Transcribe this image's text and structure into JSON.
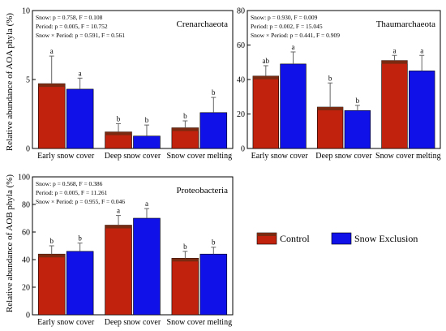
{
  "figure": {
    "ylabel_aoa": "Relative abundance of AOA phyla (%)",
    "ylabel_aob": "Relative abundance of AOB phyla (%)",
    "legend": [
      {
        "label": "Control",
        "color": "#c0220e"
      },
      {
        "label": "Snow Exclusion",
        "color": "#1010e8"
      }
    ]
  },
  "chart_data": [
    {
      "type": "bar",
      "title": "Crenarchaeota",
      "stats": [
        "Snow: p = 0.758, F = 0.108",
        "Period: p = 0.005, F = 10.752",
        "Snow × Period: p = 0.591, F = 0.561"
      ],
      "categories": [
        "Early snow cover",
        "Deep snow cover",
        "Snow cover melting"
      ],
      "ylim": [
        0,
        10
      ],
      "yticks": [
        0,
        5,
        10
      ],
      "series": [
        {
          "name": "Control",
          "values": [
            4.7,
            1.2,
            1.5
          ],
          "errors": [
            2.0,
            0.6,
            0.5
          ],
          "letters": [
            "a",
            "b",
            "b"
          ]
        },
        {
          "name": "Snow Exclusion",
          "values": [
            4.3,
            0.9,
            2.6
          ],
          "errors": [
            0.8,
            0.8,
            1.1
          ],
          "letters": [
            "a",
            "b",
            "b"
          ]
        }
      ]
    },
    {
      "type": "bar",
      "title": "Thaumarchaeota",
      "stats": [
        "Snow: p = 0.930, F = 0.009",
        "Period: p = 0.002, F = 15.045",
        "Snow × Period: p = 0.441, F = 0.909"
      ],
      "categories": [
        "Early snow cover",
        "Deep snow cover",
        "Snow cover melting"
      ],
      "ylim": [
        0,
        80
      ],
      "yticks": [
        0,
        20,
        40,
        60,
        80
      ],
      "series": [
        {
          "name": "Control",
          "values": [
            42,
            24,
            51
          ],
          "errors": [
            6,
            14,
            3
          ],
          "letters": [
            "ab",
            "b",
            "a"
          ]
        },
        {
          "name": "Snow Exclusion",
          "values": [
            49,
            22,
            45
          ],
          "errors": [
            7,
            3,
            9
          ],
          "letters": [
            "a",
            "b",
            "a"
          ]
        }
      ]
    },
    {
      "type": "bar",
      "title": "Proteobacteria",
      "stats": [
        "Snow: p = 0.568, F = 0.386",
        "Period: p = 0.005, F = 11.261",
        "Snow × Period: p = 0.955, F = 0.046"
      ],
      "categories": [
        "Early snow cover",
        "Deep snow cover",
        "Snow cover melting"
      ],
      "ylim": [
        0,
        100
      ],
      "yticks": [
        0,
        20,
        40,
        60,
        80,
        100
      ],
      "series": [
        {
          "name": "Control",
          "values": [
            44,
            65,
            41
          ],
          "errors": [
            6,
            7,
            5
          ],
          "letters": [
            "b",
            "a",
            "b"
          ]
        },
        {
          "name": "Snow Exclusion",
          "values": [
            46,
            70,
            44
          ],
          "errors": [
            6,
            7,
            5
          ],
          "letters": [
            "b",
            "a",
            "b"
          ]
        }
      ]
    }
  ]
}
